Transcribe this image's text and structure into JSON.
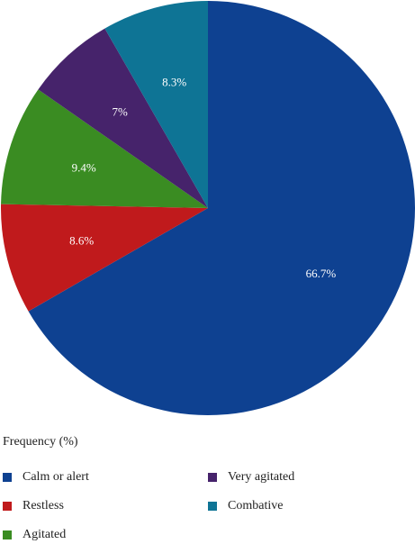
{
  "chart_data": {
    "type": "pie",
    "title": "",
    "legend_title": "Frequency (%)",
    "legend_position": "bottom",
    "start_angle": "top",
    "direction": "clockwise",
    "slices": [
      {
        "label": "Calm or alert",
        "value": 66.7,
        "value_label": "66.7%",
        "color": "#0e4191"
      },
      {
        "label": "Restless",
        "value": 8.6,
        "value_label": "8.6%",
        "color": "#c01a1c"
      },
      {
        "label": "Agitated",
        "value": 9.4,
        "value_label": "9.4%",
        "color": "#3a8c22"
      },
      {
        "label": "Very agitated",
        "value": 7,
        "value_label": "7%",
        "color": "#46236b"
      },
      {
        "label": "Combative",
        "value": 8.3,
        "value_label": "8.3%",
        "color": "#0e7495"
      }
    ]
  }
}
